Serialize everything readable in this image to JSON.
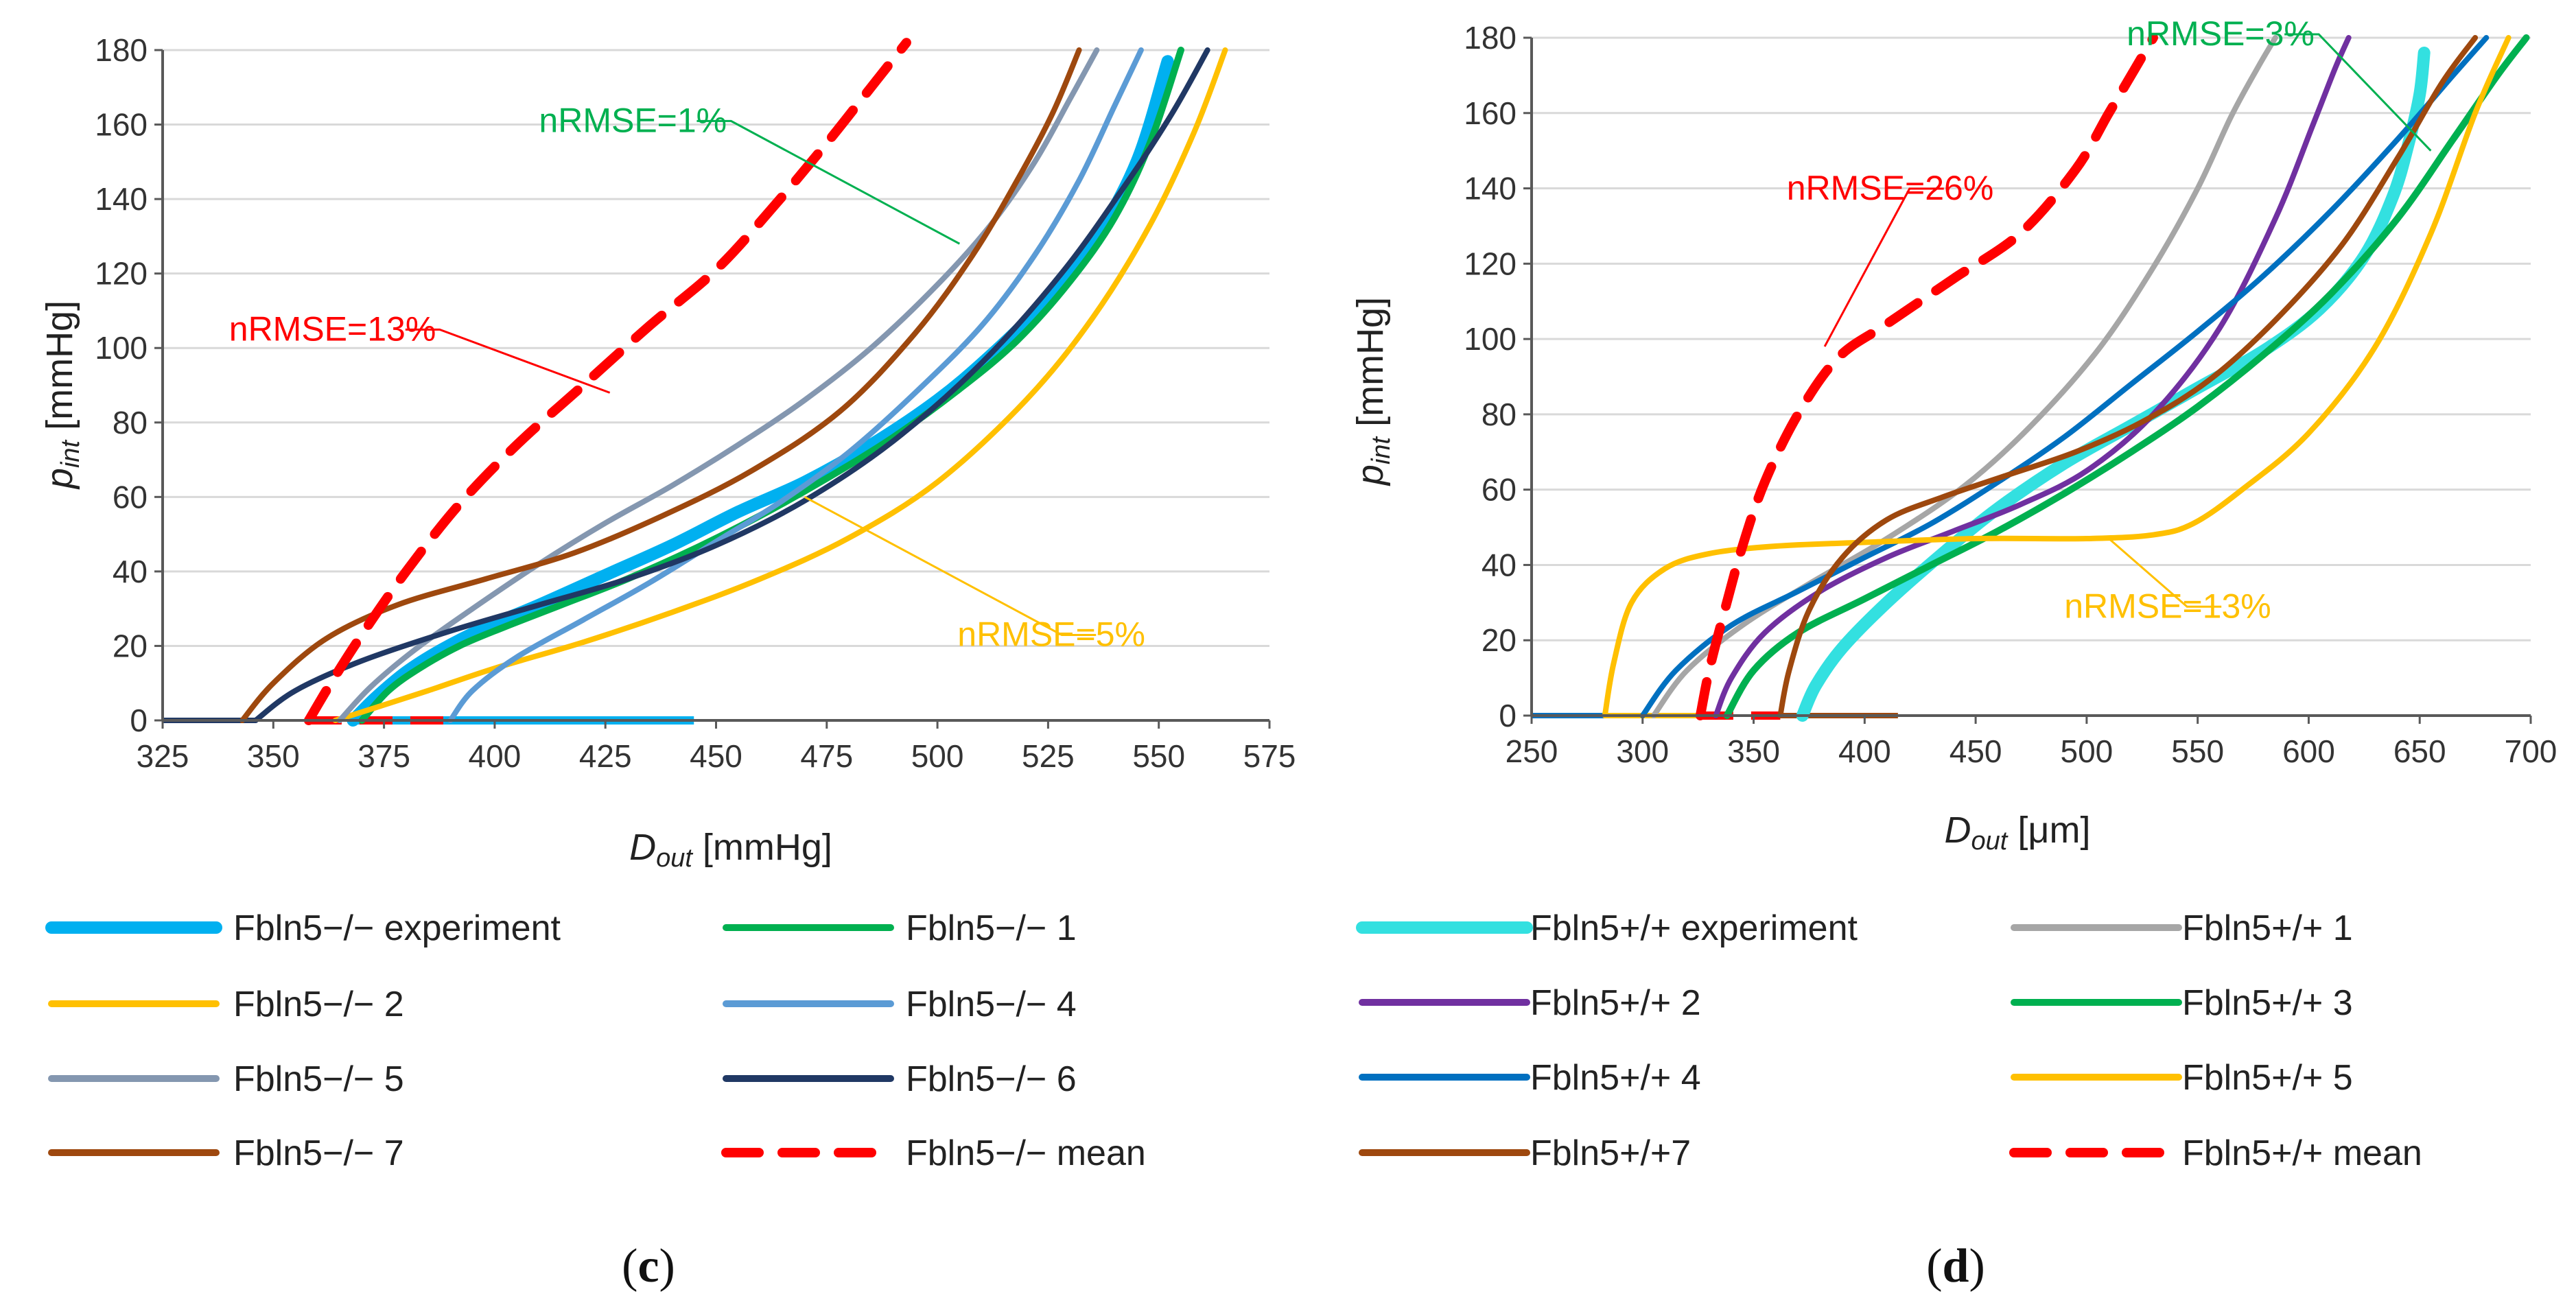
{
  "chart_data": [
    {
      "type": "line",
      "panel": "c",
      "xlabel_main": "D",
      "xlabel_sub": "out",
      "xlabel_unit": " [mmHg]",
      "ylabel_main": "p",
      "ylabel_sub": "int",
      "ylabel_unit": " [mmHg]",
      "xlim": [
        325,
        575
      ],
      "ylim": [
        0,
        180
      ],
      "xticks": [
        325,
        350,
        375,
        400,
        425,
        450,
        475,
        500,
        525,
        550,
        575
      ],
      "yticks": [
        0,
        20,
        40,
        60,
        80,
        100,
        120,
        140,
        160,
        180
      ],
      "grid": "horizontal",
      "series": [
        {
          "name": "Fbln5−/− experiment",
          "color": "#00b0f0",
          "width": 18,
          "dash": "none",
          "x": [
            368,
            373,
            380,
            388,
            398,
            410,
            425,
            440,
            455,
            470,
            485,
            500,
            512,
            524,
            535,
            545,
            552
          ],
          "y": [
            0,
            6,
            13,
            19,
            25,
            31,
            39,
            47,
            56,
            64,
            74,
            86,
            98,
            112,
            128,
            150,
            177
          ]
        },
        {
          "name": "Fbln5−/− 1",
          "color": "#00b050",
          "width": 10,
          "dash": "none",
          "x": [
            370,
            376,
            383,
            392,
            402,
            415,
            430,
            445,
            460,
            475,
            490,
            505,
            518,
            530,
            540,
            548,
            555
          ],
          "y": [
            0,
            8,
            14,
            20,
            25,
            31,
            38,
            46,
            55,
            65,
            76,
            89,
            102,
            118,
            135,
            155,
            180
          ]
        },
        {
          "name": "Fbln5−/− 2",
          "color": "#ffc000",
          "width": 8,
          "dash": "none",
          "x": [
            364,
            372,
            385,
            400,
            420,
            440,
            460,
            480,
            500,
            520,
            535,
            548,
            558,
            565
          ],
          "y": [
            0,
            3,
            8,
            14,
            21,
            29,
            38,
            49,
            64,
            86,
            108,
            133,
            158,
            180
          ]
        },
        {
          "name": "Fbln5−/− 4",
          "color": "#5b9bd5",
          "width": 8,
          "dash": "none",
          "x": [
            390,
            395,
            405,
            420,
            435,
            450,
            465,
            480,
            495,
            510,
            522,
            532,
            540,
            546
          ],
          "y": [
            0,
            8,
            17,
            27,
            37,
            48,
            59,
            72,
            88,
            106,
            125,
            145,
            165,
            180
          ]
        },
        {
          "name": "Fbln5−/− 5",
          "color": "#8497b0",
          "width": 8,
          "dash": "none",
          "x": [
            365,
            372,
            382,
            395,
            410,
            425,
            440,
            455,
            470,
            485,
            500,
            512,
            522,
            530,
            536
          ],
          "y": [
            0,
            9,
            19,
            30,
            42,
            53,
            63,
            74,
            86,
            100,
            117,
            133,
            150,
            167,
            180
          ]
        },
        {
          "name": "Fbln5−/− 6",
          "color": "#203864",
          "width": 8,
          "dash": "none",
          "x": [
            346,
            355,
            370,
            390,
            410,
            430,
            450,
            470,
            490,
            510,
            528,
            542,
            553,
            561
          ],
          "y": [
            0,
            8,
            16,
            24,
            31,
            38,
            47,
            59,
            75,
            96,
            120,
            143,
            163,
            180
          ]
        },
        {
          "name": "Fbln5−/− 7",
          "color": "#9e480e",
          "width": 8,
          "dash": "none",
          "x": [
            343,
            350,
            362,
            378,
            398,
            418,
            438,
            458,
            478,
            495,
            508,
            518,
            526,
            532
          ],
          "y": [
            0,
            10,
            22,
            31,
            38,
            45,
            55,
            67,
            83,
            104,
            125,
            145,
            163,
            180
          ]
        },
        {
          "name": "Fbln5−/− mean",
          "color": "#ff0000",
          "width": 14,
          "dash": "dash",
          "x": [
            358,
            363,
            370,
            380,
            392,
            405,
            420,
            435,
            450,
            463,
            475,
            485,
            493
          ],
          "y": [
            0,
            10,
            23,
            40,
            58,
            74,
            90,
            106,
            121,
            138,
            155,
            170,
            182
          ]
        }
      ],
      "baseline_segments": [
        {
          "series": "Fbln5−/− experiment",
          "x0": 368,
          "x1": 445
        },
        {
          "series": "Fbln5−/− 6",
          "x0": 325,
          "x1": 346
        },
        {
          "series": "Fbln5−/− mean",
          "x0": 358,
          "x1": 390
        }
      ],
      "annotations": [
        {
          "text": "nRMSE=1%",
          "color": "#00b050",
          "lx": 410,
          "ly": 158,
          "tx": 505,
          "ty": 128
        },
        {
          "text": "nRMSE=13%",
          "color": "#ff0000",
          "lx": 340,
          "ly": 102,
          "tx": 426,
          "ty": 88
        },
        {
          "text": "nRMSE=5%",
          "color": "#ffc000",
          "lx": 538,
          "ly": 20,
          "tx": 470,
          "ty": 60
        }
      ]
    },
    {
      "type": "line",
      "panel": "d",
      "xlabel_main": "D",
      "xlabel_sub": "out",
      "xlabel_unit": " [μm]",
      "ylabel_main": "p",
      "ylabel_sub": "int",
      "ylabel_unit": " [mmHg]",
      "xlim": [
        250,
        700
      ],
      "ylim": [
        0,
        180
      ],
      "xticks": [
        250,
        300,
        350,
        400,
        450,
        500,
        550,
        600,
        650,
        700
      ],
      "yticks": [
        0,
        20,
        40,
        60,
        80,
        100,
        120,
        140,
        160,
        180
      ],
      "grid": "horizontal",
      "series": [
        {
          "name": "Fbln5+/+ experiment",
          "color": "#33e0e0",
          "width": 18,
          "dash": "none",
          "x": [
            372,
            378,
            390,
            410,
            435,
            460,
            490,
            520,
            550,
            580,
            605,
            625,
            638,
            645,
            650,
            652
          ],
          "y": [
            0,
            8,
            18,
            30,
            43,
            55,
            67,
            77,
            87,
            97,
            108,
            122,
            138,
            152,
            165,
            176
          ]
        },
        {
          "name": "Fbln5+/+ 1",
          "color": "#a6a6a6",
          "width": 8,
          "dash": "none",
          "x": [
            305,
            320,
            345,
            375,
            410,
            445,
            475,
            505,
            530,
            550,
            565,
            577,
            585
          ],
          "y": [
            0,
            12,
            24,
            35,
            47,
            61,
            77,
            97,
            119,
            140,
            159,
            172,
            180
          ]
        },
        {
          "name": "Fbln5+/+ 2",
          "color": "#7030a0",
          "width": 8,
          "dash": "none",
          "x": [
            333,
            340,
            355,
            380,
            410,
            440,
            470,
            500,
            530,
            560,
            585,
            602,
            612,
            618
          ],
          "y": [
            0,
            10,
            22,
            33,
            42,
            49,
            56,
            65,
            80,
            103,
            132,
            157,
            172,
            180
          ]
        },
        {
          "name": "Fbln5+/+ 3",
          "color": "#00b050",
          "width": 10,
          "dash": "none",
          "x": [
            338,
            350,
            370,
            400,
            430,
            460,
            490,
            520,
            550,
            580,
            610,
            640,
            665,
            685,
            698
          ],
          "y": [
            0,
            12,
            22,
            31,
            40,
            49,
            59,
            70,
            82,
            96,
            112,
            132,
            153,
            170,
            180
          ]
        },
        {
          "name": "Fbln5+/+ 4",
          "color": "#0070c0",
          "width": 8,
          "dash": "none",
          "x": [
            300,
            315,
            340,
            370,
            400,
            430,
            460,
            490,
            520,
            550,
            580,
            610,
            640,
            665,
            680
          ],
          "y": [
            0,
            12,
            24,
            33,
            42,
            51,
            62,
            74,
            88,
            102,
            117,
            134,
            153,
            170,
            180
          ]
        },
        {
          "name": "Fbln5+/+ 5",
          "color": "#ffc000",
          "width": 8,
          "dash": "none",
          "x": [
            283,
            287,
            295,
            310,
            330,
            360,
            400,
            450,
            500,
            530,
            548,
            570,
            600,
            630,
            655,
            675,
            690
          ],
          "y": [
            0,
            14,
            30,
            39,
            43,
            45,
            46,
            47,
            47,
            48,
            51,
            60,
            75,
            98,
            128,
            160,
            180
          ]
        },
        {
          "name": "Fbln5+/+7",
          "color": "#9e480e",
          "width": 8,
          "dash": "none",
          "x": [
            362,
            366,
            375,
            390,
            410,
            435,
            465,
            495,
            525,
            555,
            585,
            615,
            640,
            660,
            675
          ],
          "y": [
            0,
            12,
            28,
            42,
            52,
            58,
            64,
            70,
            78,
            89,
            105,
            125,
            148,
            168,
            180
          ]
        },
        {
          "name": "Fbln5+/+ mean",
          "color": "#ff0000",
          "width": 14,
          "dash": "dash",
          "x": [
            326,
            330,
            337,
            345,
            355,
            370,
            388,
            410,
            440,
            470,
            495,
            510,
            522,
            530
          ],
          "y": [
            0,
            12,
            28,
            45,
            62,
            80,
            95,
            104,
            116,
            128,
            145,
            160,
            172,
            180
          ]
        }
      ],
      "baseline_segments": [
        {
          "series": "Fbln5+/+ 4",
          "x0": 250,
          "x1": 300
        },
        {
          "series": "Fbln5+/+ 5",
          "x0": 283,
          "x1": 330
        },
        {
          "series": "Fbln5+/+ mean",
          "x0": 326,
          "x1": 362
        },
        {
          "series": "Fbln5+/+7",
          "x0": 362,
          "x1": 415
        }
      ],
      "annotations": [
        {
          "text": "nRMSE=3%",
          "color": "#00b050",
          "lx": 518,
          "ly": 178,
          "tx": 655,
          "ty": 150
        },
        {
          "text": "nRMSE=26%",
          "color": "#ff0000",
          "lx": 440,
          "ly": 137,
          "tx": 382,
          "ty": 98
        },
        {
          "text": "nRMSE=13%",
          "color": "#ffc000",
          "lx": 565,
          "ly": 26,
          "tx": 510,
          "ty": 47
        }
      ]
    }
  ]
}
